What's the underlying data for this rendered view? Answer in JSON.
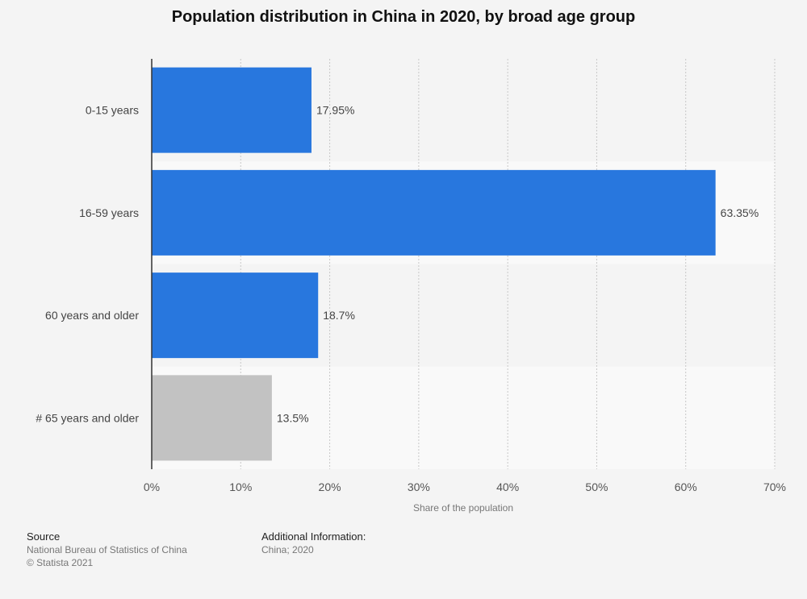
{
  "chart_data": {
    "type": "bar",
    "orientation": "horizontal",
    "title": "Population distribution in China in 2020, by broad age group",
    "categories": [
      "0-15 years",
      "16-59 years",
      "60 years and older",
      "# 65 years and older"
    ],
    "values": [
      17.95,
      63.35,
      18.7,
      13.5
    ],
    "value_labels": [
      "17.95%",
      "63.35%",
      "18.7%",
      "13.5%"
    ],
    "bar_colors": [
      "#2877de",
      "#2877de",
      "#2877de",
      "#c2c2c2"
    ],
    "xlabel": "Share of the population",
    "ylabel": "",
    "xlim": [
      0,
      70
    ],
    "x_ticks": [
      0,
      10,
      20,
      30,
      40,
      50,
      60,
      70
    ],
    "x_tick_labels": [
      "0%",
      "10%",
      "20%",
      "30%",
      "40%",
      "50%",
      "60%",
      "70%"
    ],
    "grid": true
  },
  "footer": {
    "source_heading": "Source",
    "source_text": "National Bureau of Statistics of China",
    "copyright": "© Statista 2021",
    "info_heading": "Additional Information:",
    "info_text": "China; 2020"
  }
}
